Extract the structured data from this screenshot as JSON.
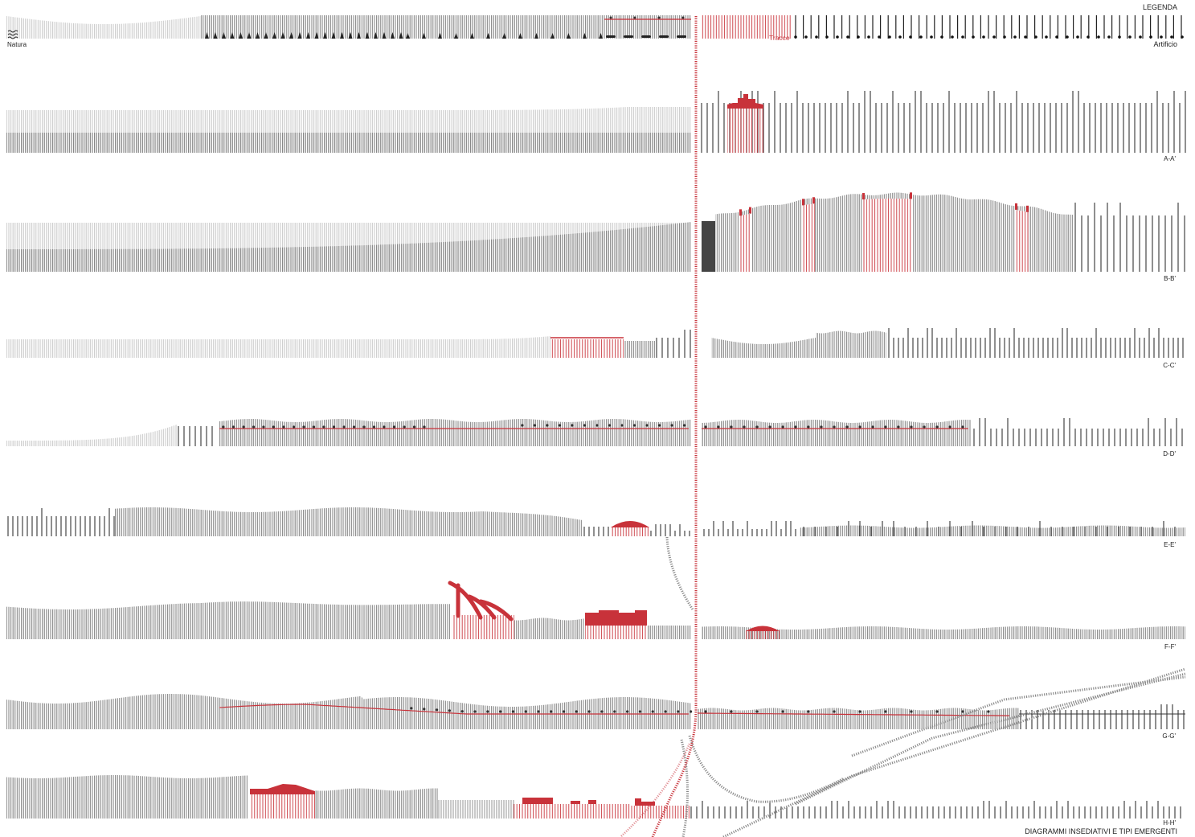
{
  "legend": {
    "title": "LEGENDA",
    "natura": "Natura",
    "tracce": "Tracce",
    "artificio": "Artificio"
  },
  "sections": [
    {
      "label": "A-A'"
    },
    {
      "label": "B-B'"
    },
    {
      "label": "C-C'"
    },
    {
      "label": "D-D'"
    },
    {
      "label": "E-E'"
    },
    {
      "label": "F-F'"
    },
    {
      "label": "G-G'"
    },
    {
      "label": "H-H'"
    }
  ],
  "footer_title": "DIAGRAMMI INSEDIATIVI E TIPI EMERGENTI",
  "colors": {
    "trace": "#c8323a",
    "urban": "#333333",
    "nature": "#c6c6c6",
    "dense": "#7a7a7a"
  }
}
